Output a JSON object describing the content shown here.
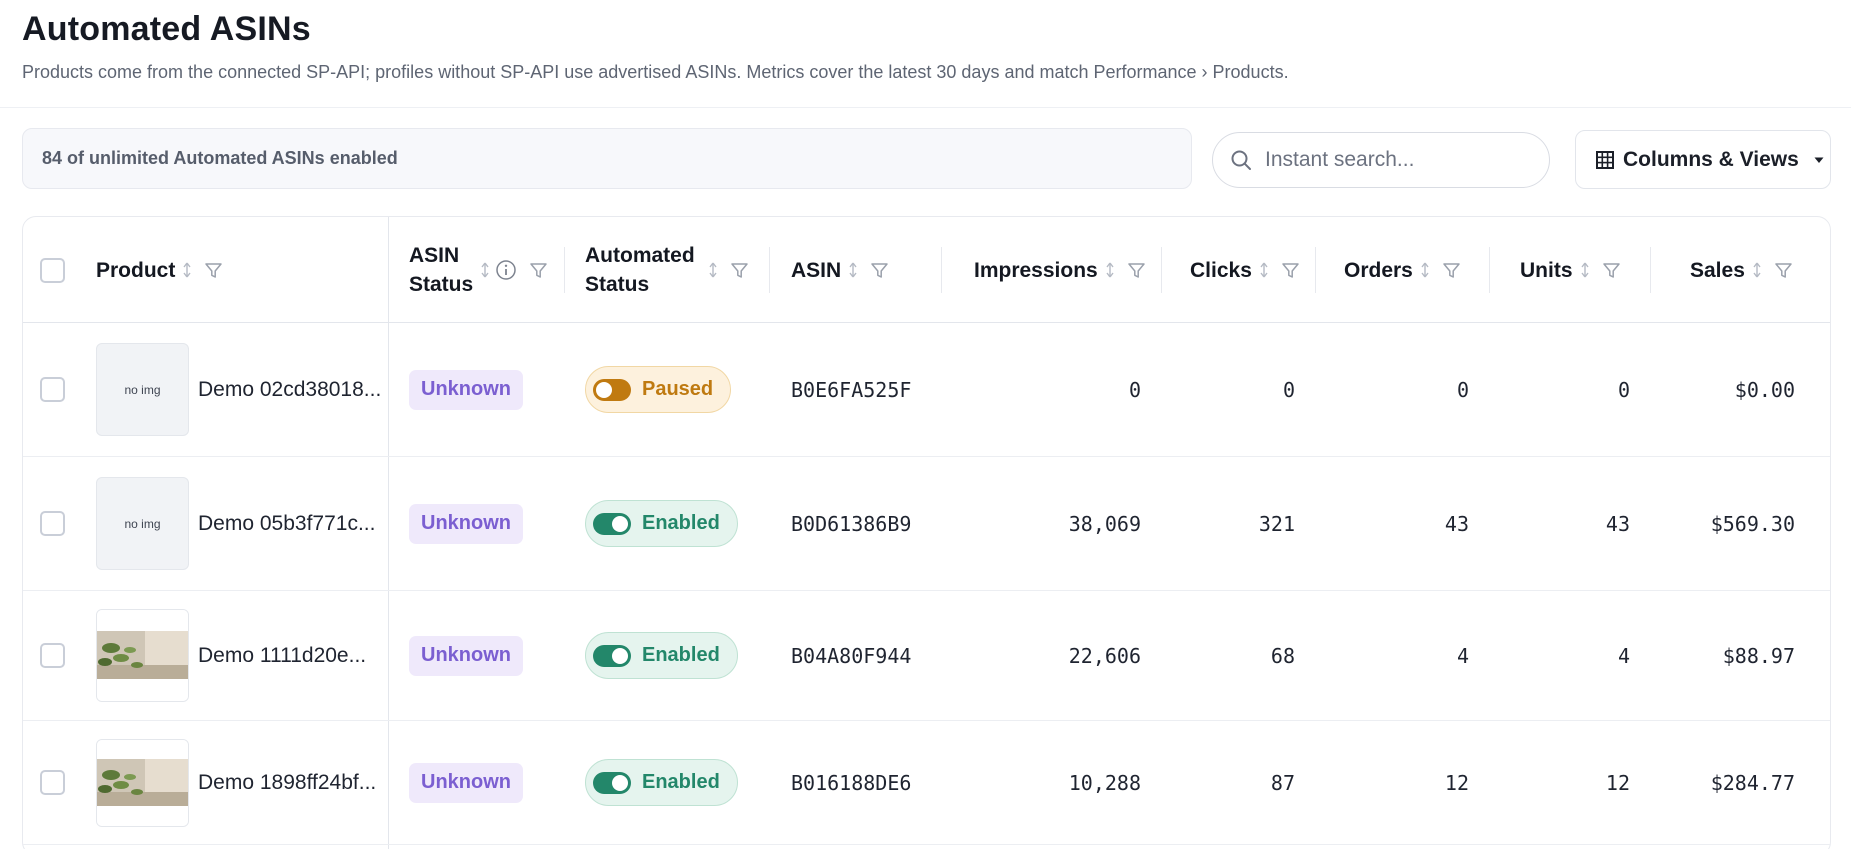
{
  "header": {
    "title": "Automated ASINs",
    "subtitle": "Products come from the connected SP-API; profiles without SP-API use advertised ASINs. Metrics cover the latest 30 days and match Performance › Products."
  },
  "toolbar": {
    "limit_text": "84 of unlimited Automated ASINs enabled",
    "search_placeholder": "Instant search...",
    "search_icon": "search-icon",
    "columns_label": "Columns & Views",
    "columns_icon": "grid-icon"
  },
  "table": {
    "columns": {
      "product": "Product",
      "asin_status_1": "ASIN",
      "asin_status_2": "Status",
      "automated_status_1": "Automated",
      "automated_status_2": "Status",
      "asin": "ASIN",
      "impressions": "Impressions",
      "clicks": "Clicks",
      "orders": "Orders",
      "units": "Units",
      "sales": "Sales"
    },
    "rows": [
      {
        "image_text": "no img",
        "has_image": false,
        "product": "Demo 02cd38018...",
        "asin_status": "Unknown",
        "automated_status": "Paused",
        "asin": "B0E6FA525F",
        "impressions": "0",
        "clicks": "0",
        "orders": "0",
        "units": "0",
        "sales": "$0.00"
      },
      {
        "image_text": "no img",
        "has_image": false,
        "product": "Demo 05b3f771c...",
        "asin_status": "Unknown",
        "automated_status": "Enabled",
        "asin": "B0D61386B9",
        "impressions": "38,069",
        "clicks": "321",
        "orders": "43",
        "units": "43",
        "sales": "$569.30"
      },
      {
        "image_text": "",
        "has_image": true,
        "product": "Demo 1111d20e...",
        "asin_status": "Unknown",
        "automated_status": "Enabled",
        "asin": "B04A80F944",
        "impressions": "22,606",
        "clicks": "68",
        "orders": "4",
        "units": "4",
        "sales": "$88.97"
      },
      {
        "image_text": "",
        "has_image": true,
        "product": "Demo 1898ff24bf...",
        "asin_status": "Unknown",
        "automated_status": "Enabled",
        "asin": "B016188DE6",
        "impressions": "10,288",
        "clicks": "87",
        "orders": "12",
        "units": "12",
        "sales": "$284.77"
      }
    ]
  },
  "colors": {
    "paused": "#bf7a10",
    "enabled": "#23876a",
    "unknown": "#7b5fd1"
  }
}
